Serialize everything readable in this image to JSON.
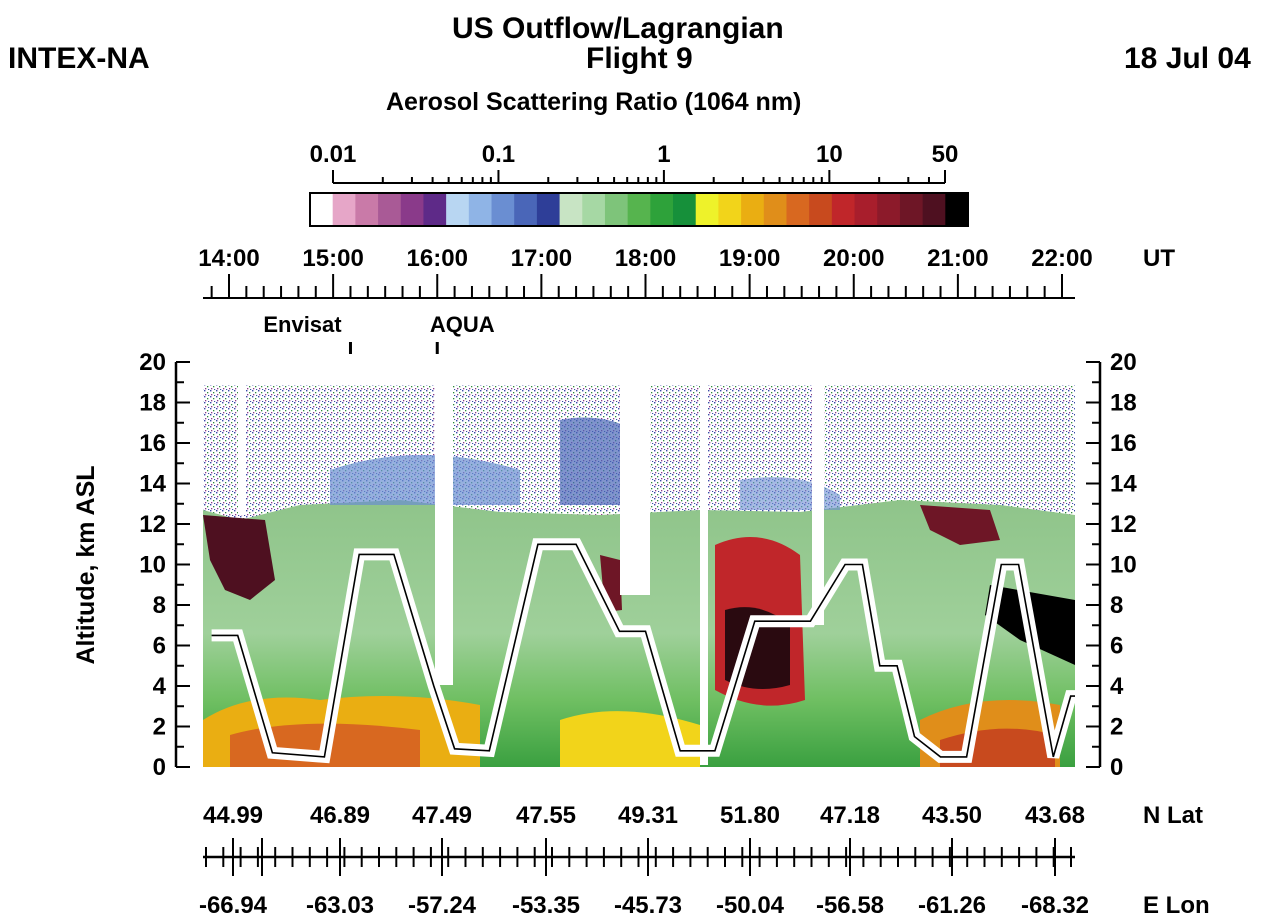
{
  "header": {
    "mission": "INTEX-NA",
    "title_line1": "US Outflow/Lagrangian",
    "title_line2": "Flight 9",
    "date": "18 Jul 04",
    "colorbar_title": "Aerosol Scattering Ratio (1064 nm)"
  },
  "colorbar": {
    "tick_labels": [
      "0.01",
      "0.1",
      "1",
      "10",
      "50"
    ],
    "tick_values": [
      0.01,
      0.1,
      1,
      10,
      50
    ],
    "colors": [
      "#ffffff",
      "#e6a6c8",
      "#c97aa8",
      "#a95a96",
      "#8a3a8a",
      "#5e2a88",
      "#b8d6f2",
      "#8fb4e6",
      "#6a8ed2",
      "#4a66b8",
      "#2e3e98",
      "#c8e4c4",
      "#a6d8a4",
      "#7ec47a",
      "#56b44e",
      "#2ea23a",
      "#16903a",
      "#eef22a",
      "#f2d41a",
      "#eaae12",
      "#e08e1a",
      "#d86820",
      "#c84a1e",
      "#c0262a",
      "#a81e2c",
      "#8c1a2a",
      "#6e1626",
      "#4e1020",
      "#000000"
    ]
  },
  "chart_data": {
    "type": "heatmap",
    "title": "Aerosol Scattering Ratio (1064 nm)",
    "x_axis_label": "UT",
    "x_ticks": [
      "14:00",
      "15:00",
      "16:00",
      "17:00",
      "18:00",
      "19:00",
      "20:00",
      "21:00",
      "22:00"
    ],
    "y_axis_label": "Altitude, km ASL",
    "y_ticks": [
      "0",
      "2",
      "4",
      "6",
      "8",
      "10",
      "12",
      "14",
      "16",
      "18",
      "20"
    ],
    "ylim": [
      0,
      20
    ],
    "events": [
      {
        "label": "Envisat",
        "time": "15:10"
      },
      {
        "label": "AQUA",
        "time": "16:00"
      }
    ],
    "lat_axis_label": "N Lat",
    "lat_values": [
      "44.99",
      "46.89",
      "47.49",
      "47.55",
      "49.31",
      "51.80",
      "47.18",
      "43.50",
      "43.68"
    ],
    "lon_axis_label": "E Lon",
    "lon_values": [
      "-66.94",
      "-63.03",
      "-57.24",
      "-53.35",
      "-45.73",
      "-50.04",
      "-56.58",
      "-61.26",
      "-68.32"
    ],
    "flight_altitude_km": [
      {
        "time": "13:50",
        "alt": 6.5
      },
      {
        "time": "14:05",
        "alt": 6.5
      },
      {
        "time": "14:25",
        "alt": 0.7
      },
      {
        "time": "14:55",
        "alt": 0.5
      },
      {
        "time": "15:15",
        "alt": 10.5
      },
      {
        "time": "15:35",
        "alt": 10.5
      },
      {
        "time": "15:58",
        "alt": 4.0
      },
      {
        "time": "16:10",
        "alt": 0.9
      },
      {
        "time": "16:30",
        "alt": 0.8
      },
      {
        "time": "16:58",
        "alt": 11.0
      },
      {
        "time": "17:20",
        "alt": 11.0
      },
      {
        "time": "17:45",
        "alt": 6.7
      },
      {
        "time": "18:00",
        "alt": 6.7
      },
      {
        "time": "18:20",
        "alt": 0.8
      },
      {
        "time": "18:40",
        "alt": 0.8
      },
      {
        "time": "19:03",
        "alt": 7.2
      },
      {
        "time": "19:35",
        "alt": 7.2
      },
      {
        "time": "19:55",
        "alt": 10.0
      },
      {
        "time": "20:05",
        "alt": 10.0
      },
      {
        "time": "20:15",
        "alt": 5.0
      },
      {
        "time": "20:25",
        "alt": 5.0
      },
      {
        "time": "20:35",
        "alt": 1.5
      },
      {
        "time": "20:50",
        "alt": 0.5
      },
      {
        "time": "21:05",
        "alt": 0.5
      },
      {
        "time": "21:25",
        "alt": 10.0
      },
      {
        "time": "21:35",
        "alt": 10.0
      },
      {
        "time": "21:55",
        "alt": 0.5
      },
      {
        "time": "22:05",
        "alt": 3.5
      },
      {
        "time": "22:12",
        "alt": 3.5
      }
    ]
  }
}
